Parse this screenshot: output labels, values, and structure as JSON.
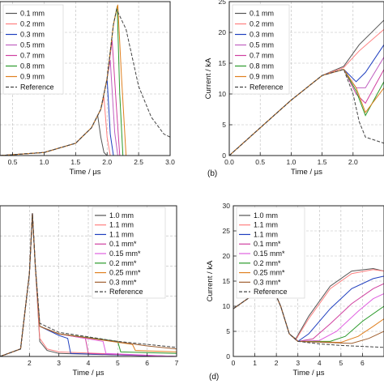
{
  "chart_data": [
    {
      "type": "line",
      "panel_label": "",
      "xlabel": "Time / µs",
      "ylabel": "",
      "xlim": [
        0.3,
        3.0
      ],
      "ylim": [
        0,
        1
      ],
      "xticks": [
        "0.5",
        "1.0",
        "1.5",
        "2.0",
        "2.5",
        "3.0"
      ],
      "yticks": [],
      "grid": true,
      "legend_position": "top-left",
      "series": [
        {
          "name": "0.1 mm",
          "color": "#555555",
          "dash": "",
          "x": [
            0.3,
            1.0,
            1.5,
            1.75,
            1.85,
            1.9,
            1.95,
            2.0
          ],
          "y": [
            0.0,
            0.02,
            0.08,
            0.18,
            0.26,
            0.12,
            0.02,
            0.0
          ]
        },
        {
          "name": "0.2 mm",
          "color": "#ff7f7f",
          "dash": "",
          "x": [
            0.3,
            1.0,
            1.5,
            1.75,
            1.9,
            1.95,
            2.0,
            2.05
          ],
          "y": [
            0.0,
            0.02,
            0.08,
            0.18,
            0.3,
            0.38,
            0.12,
            0.0
          ]
        },
        {
          "name": "0.3 mm",
          "color": "#1f3fbf",
          "dash": "",
          "x": [
            0.3,
            1.0,
            1.5,
            1.75,
            1.9,
            2.0,
            2.05,
            2.1
          ],
          "y": [
            0.0,
            0.02,
            0.08,
            0.18,
            0.3,
            0.5,
            0.14,
            0.0
          ]
        },
        {
          "name": "0.5 mm",
          "color": "#c060c0",
          "dash": "",
          "x": [
            0.3,
            1.0,
            1.5,
            1.75,
            1.9,
            2.0,
            2.05,
            2.12,
            2.17
          ],
          "y": [
            0.0,
            0.02,
            0.08,
            0.18,
            0.3,
            0.5,
            0.62,
            0.15,
            0.0
          ]
        },
        {
          "name": "0.7 mm",
          "color": "#d040a0",
          "dash": "",
          "x": [
            0.3,
            1.0,
            1.5,
            1.75,
            1.9,
            2.0,
            2.08,
            2.15,
            2.2
          ],
          "y": [
            0.0,
            0.02,
            0.08,
            0.18,
            0.3,
            0.5,
            0.75,
            0.3,
            0.0
          ]
        },
        {
          "name": "0.8 mm",
          "color": "#2a9a2a",
          "dash": "",
          "x": [
            0.3,
            1.0,
            1.5,
            1.75,
            1.9,
            2.0,
            2.1,
            2.16,
            2.2,
            2.25
          ],
          "y": [
            0.0,
            0.02,
            0.08,
            0.18,
            0.3,
            0.5,
            0.85,
            0.97,
            0.4,
            0.0
          ]
        },
        {
          "name": "0.9 mm",
          "color": "#e08020",
          "dash": "",
          "x": [
            0.3,
            1.0,
            1.5,
            1.75,
            1.9,
            2.0,
            2.1,
            2.17,
            2.23,
            2.3
          ],
          "y": [
            0.0,
            0.02,
            0.08,
            0.18,
            0.3,
            0.5,
            0.85,
            0.98,
            0.5,
            0.0
          ]
        },
        {
          "name": "Reference",
          "color": "#444444",
          "dash": "4,2",
          "x": [
            0.3,
            1.0,
            1.5,
            1.75,
            1.9,
            2.0,
            2.1,
            2.15,
            2.3,
            2.5,
            2.7,
            2.9,
            3.0
          ],
          "y": [
            0.0,
            0.02,
            0.08,
            0.18,
            0.3,
            0.5,
            0.85,
            0.95,
            0.82,
            0.45,
            0.25,
            0.14,
            0.12
          ]
        }
      ]
    },
    {
      "type": "line",
      "panel_label": "(b)",
      "xlabel": "Time / µs",
      "ylabel": "Current / kA",
      "xlim": [
        0.0,
        2.5
      ],
      "ylim": [
        0,
        25
      ],
      "xticks": [
        "0.0",
        "0.5",
        "1.0",
        "1.5",
        "2.0"
      ],
      "yticks": [
        "0",
        "5",
        "10",
        "15",
        "20",
        "25"
      ],
      "grid": true,
      "legend_position": "top-left",
      "series": [
        {
          "name": "0.1 mm",
          "color": "#555555",
          "dash": "",
          "x": [
            0.0,
            0.5,
            1.0,
            1.5,
            1.85,
            2.1,
            2.5
          ],
          "y": [
            0.0,
            4.5,
            9.0,
            13.0,
            14.5,
            18.0,
            22.0
          ]
        },
        {
          "name": "0.2 mm",
          "color": "#ff7f7f",
          "dash": "",
          "x": [
            0.0,
            0.5,
            1.0,
            1.5,
            1.85,
            2.1,
            2.5
          ],
          "y": [
            0.0,
            4.5,
            9.0,
            13.0,
            14.3,
            17.0,
            20.5
          ]
        },
        {
          "name": "0.3 mm",
          "color": "#1f3fbf",
          "dash": "",
          "x": [
            0.0,
            0.5,
            1.0,
            1.5,
            1.85,
            2.05,
            2.2,
            2.5
          ],
          "y": [
            0.0,
            4.5,
            9.0,
            13.0,
            14.0,
            12.0,
            13.5,
            18.0
          ]
        },
        {
          "name": "0.5 mm",
          "color": "#c060c0",
          "dash": "",
          "x": [
            0.0,
            0.5,
            1.0,
            1.5,
            1.85,
            2.05,
            2.2,
            2.5
          ],
          "y": [
            0.0,
            4.5,
            9.0,
            13.0,
            14.0,
            11.0,
            11.0,
            16.0
          ]
        },
        {
          "name": "0.7 mm",
          "color": "#d040a0",
          "dash": "",
          "x": [
            0.0,
            0.5,
            1.0,
            1.5,
            1.85,
            2.05,
            2.2,
            2.5
          ],
          "y": [
            0.0,
            4.5,
            9.0,
            13.0,
            14.0,
            10.0,
            8.5,
            14.0
          ]
        },
        {
          "name": "0.8 mm",
          "color": "#2a9a2a",
          "dash": "",
          "x": [
            0.0,
            0.5,
            1.0,
            1.5,
            1.85,
            2.05,
            2.2,
            2.5
          ],
          "y": [
            0.0,
            4.5,
            9.0,
            13.0,
            14.0,
            10.5,
            6.5,
            12.0
          ]
        },
        {
          "name": "0.9 mm",
          "color": "#e08020",
          "dash": "",
          "x": [
            0.0,
            0.5,
            1.0,
            1.5,
            1.85,
            2.05,
            2.2,
            2.5
          ],
          "y": [
            0.0,
            4.5,
            9.0,
            13.0,
            14.0,
            11.0,
            7.0,
            11.0
          ]
        },
        {
          "name": "Reference",
          "color": "#444444",
          "dash": "4,2",
          "x": [
            0.0,
            0.5,
            1.0,
            1.5,
            1.85,
            2.0,
            2.1,
            2.2,
            2.5
          ],
          "y": [
            0.0,
            4.5,
            9.0,
            13.0,
            14.0,
            10.0,
            5.5,
            3.0,
            2.0
          ]
        }
      ]
    },
    {
      "type": "line",
      "panel_label": "",
      "xlabel": "Time / µs",
      "ylabel": "",
      "xlim": [
        1.0,
        7.0
      ],
      "ylim": [
        0,
        1
      ],
      "xticks": [
        "2",
        "3",
        "4",
        "5",
        "6",
        "7"
      ],
      "yticks": [],
      "grid": true,
      "legend_position": "top-right",
      "series": [
        {
          "name": "1.0 mm",
          "color": "#555555",
          "dash": "",
          "x": [
            1.0,
            1.7,
            2.0,
            2.1,
            2.2,
            2.35,
            2.6,
            3.0,
            7.0
          ],
          "y": [
            0.0,
            0.05,
            0.55,
            0.95,
            0.6,
            0.1,
            0.04,
            0.02,
            0.0
          ]
        },
        {
          "name": "1.1 mm",
          "color": "#ff7f7f",
          "dash": "",
          "x": [
            1.0,
            1.7,
            2.0,
            2.1,
            2.2,
            2.35,
            2.6,
            3.0,
            7.0
          ],
          "y": [
            0.0,
            0.05,
            0.55,
            0.95,
            0.6,
            0.12,
            0.05,
            0.03,
            0.0
          ]
        },
        {
          "name": "1.1 mm",
          "color": "#1f3fbf",
          "dash": "",
          "x": [
            1.0,
            1.7,
            2.0,
            2.1,
            2.2,
            2.35,
            3.0,
            3.3,
            3.4,
            7.0
          ],
          "y": [
            0.0,
            0.05,
            0.55,
            0.95,
            0.6,
            0.2,
            0.14,
            0.12,
            0.02,
            0.0
          ]
        },
        {
          "name": "0.1 mm*",
          "color": "#d040a0",
          "dash": "",
          "x": [
            1.0,
            1.7,
            2.0,
            2.1,
            2.2,
            2.35,
            3.0,
            3.9,
            4.0,
            7.0
          ],
          "y": [
            0.0,
            0.05,
            0.55,
            0.95,
            0.6,
            0.2,
            0.15,
            0.12,
            0.02,
            0.0
          ]
        },
        {
          "name": "0.15 mm*",
          "color": "#e060e0",
          "dash": "",
          "x": [
            1.0,
            1.7,
            2.0,
            2.1,
            2.2,
            2.35,
            3.0,
            4.5,
            4.6,
            7.0
          ],
          "y": [
            0.0,
            0.05,
            0.55,
            0.95,
            0.6,
            0.2,
            0.15,
            0.1,
            0.02,
            0.0
          ]
        },
        {
          "name": "0.2 mm*",
          "color": "#2a9a2a",
          "dash": "",
          "x": [
            1.0,
            1.7,
            2.0,
            2.1,
            2.2,
            2.35,
            3.0,
            5.0,
            5.1,
            7.0
          ],
          "y": [
            0.0,
            0.05,
            0.55,
            0.95,
            0.6,
            0.2,
            0.15,
            0.1,
            0.03,
            0.02
          ]
        },
        {
          "name": "0.25 mm*",
          "color": "#e08020",
          "dash": "",
          "x": [
            1.0,
            1.7,
            2.0,
            2.1,
            2.2,
            2.35,
            3.0,
            5.5,
            5.6,
            7.0
          ],
          "y": [
            0.0,
            0.05,
            0.55,
            0.95,
            0.6,
            0.2,
            0.15,
            0.08,
            0.04,
            0.03
          ]
        },
        {
          "name": "0.3 mm*",
          "color": "#a06030",
          "dash": "",
          "x": [
            1.0,
            1.7,
            2.0,
            2.1,
            2.2,
            2.35,
            3.0,
            6.0,
            7.0
          ],
          "y": [
            0.0,
            0.05,
            0.55,
            0.95,
            0.6,
            0.2,
            0.15,
            0.07,
            0.05
          ]
        },
        {
          "name": "Reference",
          "color": "#444444",
          "dash": "4,2",
          "x": [
            1.0,
            1.7,
            2.0,
            2.1,
            2.2,
            2.35,
            3.0,
            4.0,
            5.0,
            6.0,
            7.0
          ],
          "y": [
            0.0,
            0.05,
            0.55,
            0.95,
            0.6,
            0.22,
            0.16,
            0.13,
            0.1,
            0.08,
            0.06
          ]
        }
      ]
    },
    {
      "type": "line",
      "panel_label": "(d)",
      "xlabel": "Time / µs",
      "ylabel": "Current / kA",
      "xlim": [
        0,
        7
      ],
      "ylim": [
        0,
        30
      ],
      "xticks": [
        "0",
        "1",
        "2",
        "3",
        "4",
        "5",
        "6"
      ],
      "yticks": [
        "0",
        "5",
        "10",
        "15",
        "20",
        "25",
        "30"
      ],
      "grid": true,
      "legend_position": "top-left",
      "series": [
        {
          "name": "1.0 mm",
          "color": "#555555",
          "dash": "",
          "x": [
            0.0,
            1.0,
            1.8,
            2.2,
            2.6,
            2.9,
            3.5,
            4.5,
            5.5,
            6.5,
            7.0
          ],
          "y": [
            9.5,
            12.5,
            14.0,
            10.0,
            4.5,
            3.5,
            8.0,
            14.0,
            17.0,
            17.5,
            17.0
          ]
        },
        {
          "name": "1.1 mm",
          "color": "#ff7f7f",
          "dash": "",
          "x": [
            0.0,
            1.0,
            1.8,
            2.2,
            2.6,
            2.9,
            3.5,
            4.5,
            5.5,
            6.5,
            7.0
          ],
          "y": [
            9.5,
            12.5,
            14.0,
            10.0,
            4.5,
            3.3,
            7.5,
            13.5,
            16.5,
            17.3,
            17.0
          ]
        },
        {
          "name": "1.1 mm",
          "color": "#1f3fbf",
          "dash": "",
          "x": [
            0.0,
            1.0,
            1.8,
            2.2,
            2.6,
            3.0,
            3.5,
            4.5,
            5.5,
            6.5,
            7.0
          ],
          "y": [
            9.5,
            12.5,
            14.0,
            10.0,
            4.5,
            3.0,
            4.5,
            9.5,
            13.5,
            15.5,
            16.0
          ]
        },
        {
          "name": "0.1 mm*",
          "color": "#d040a0",
          "dash": "",
          "x": [
            0.0,
            1.0,
            1.8,
            2.2,
            2.6,
            3.0,
            3.7,
            4.5,
            5.5,
            6.5,
            7.0
          ],
          "y": [
            9.5,
            12.5,
            14.0,
            10.0,
            4.5,
            3.0,
            3.5,
            6.5,
            10.5,
            13.5,
            14.5
          ]
        },
        {
          "name": "0.15 mm*",
          "color": "#e060e0",
          "dash": "",
          "x": [
            0.0,
            1.0,
            1.8,
            2.2,
            2.6,
            3.0,
            4.0,
            4.8,
            5.8,
            6.5,
            7.0
          ],
          "y": [
            9.5,
            12.5,
            14.0,
            10.0,
            4.5,
            3.0,
            3.2,
            5.0,
            9.0,
            11.5,
            12.5
          ]
        },
        {
          "name": "0.2 mm*",
          "color": "#2a9a2a",
          "dash": "",
          "x": [
            0.0,
            1.0,
            1.8,
            2.2,
            2.6,
            3.0,
            4.5,
            5.2,
            6.0,
            7.0
          ],
          "y": [
            9.5,
            12.5,
            14.0,
            10.0,
            4.5,
            3.0,
            3.0,
            4.0,
            7.0,
            10.0
          ]
        },
        {
          "name": "0.25 mm*",
          "color": "#e08020",
          "dash": "",
          "x": [
            0.0,
            1.0,
            1.8,
            2.2,
            2.6,
            3.0,
            5.0,
            5.8,
            6.5,
            7.0
          ],
          "y": [
            9.5,
            12.5,
            14.0,
            10.0,
            4.5,
            3.0,
            2.8,
            4.0,
            6.0,
            7.5
          ]
        },
        {
          "name": "0.3 mm*",
          "color": "#a06030",
          "dash": "",
          "x": [
            0.0,
            1.0,
            1.8,
            2.2,
            2.6,
            3.0,
            5.5,
            6.3,
            7.0
          ],
          "y": [
            9.5,
            12.5,
            14.0,
            10.0,
            4.5,
            3.0,
            2.6,
            3.6,
            5.0
          ]
        },
        {
          "name": "Reference",
          "color": "#444444",
          "dash": "4,2",
          "x": [
            0.0,
            1.0,
            1.8,
            2.2,
            2.6,
            3.0,
            4.0,
            5.0,
            6.0,
            7.0
          ],
          "y": [
            9.5,
            12.5,
            14.0,
            10.0,
            4.5,
            3.0,
            2.5,
            2.2,
            2.0,
            1.8
          ]
        }
      ]
    }
  ]
}
